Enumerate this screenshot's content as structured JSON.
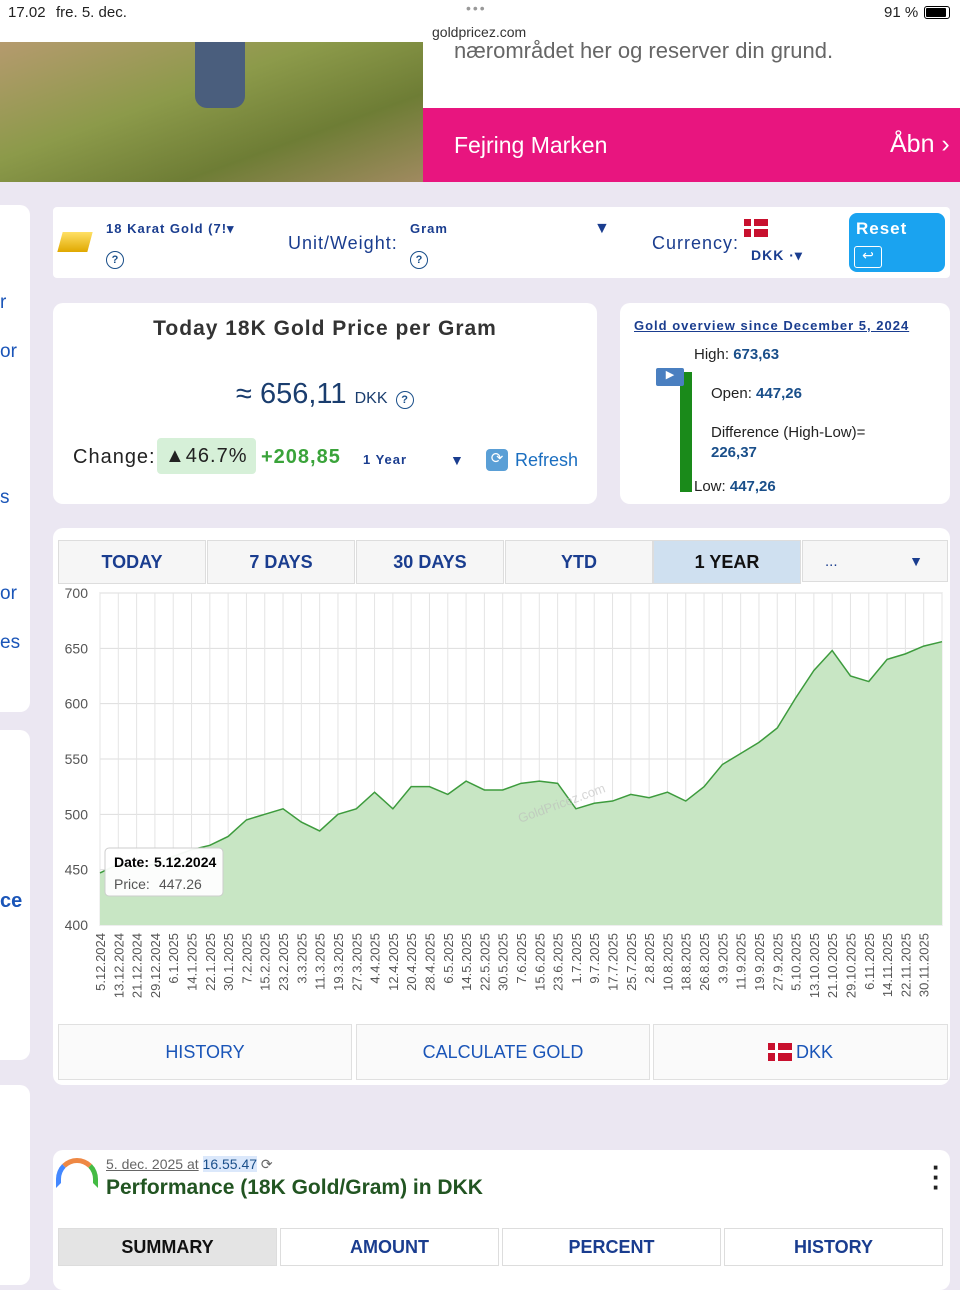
{
  "status_bar": {
    "time": "17.02",
    "date": "fre. 5. dec.",
    "url": "goldpricez.com",
    "battery": "91 %"
  },
  "ad": {
    "text": "nærområdet her og reserver din grund.",
    "title": "Fejring Marken",
    "button": "Åbn"
  },
  "sidebar_fragments": [
    "r",
    "or",
    "s",
    "or",
    "es",
    "ce"
  ],
  "selector": {
    "karat": "18 Karat Gold (7!",
    "unit_label": "Unit/Weight:",
    "unit": "Gram",
    "currency_label": "Currency:",
    "currency": "DKK ·",
    "reset": "Reset",
    "help": "?"
  },
  "price_card": {
    "title": "Today 18K Gold Price per Gram",
    "approx": "≈",
    "price": "656,11",
    "currency": "DKK",
    "change_label": "Change:",
    "change_percent": "▲46.7%",
    "change_amount": "+208,85",
    "period": "1 Year",
    "refresh": "Refresh"
  },
  "overview": {
    "title": "Gold overview since December 5, 2024",
    "high_label": "High:",
    "high": "673,63",
    "open_label": "Open:",
    "open": "447,26",
    "difference_label": "Difference (High-Low)=",
    "difference": "226,37",
    "low_label": "Low:",
    "low": "447,26"
  },
  "tabs": [
    "TODAY",
    "7 DAYS",
    "30 DAYS",
    "YTD",
    "1 YEAR",
    "..."
  ],
  "chart_data": {
    "type": "line",
    "color": "#3d9b3d",
    "fill": "#c8e6c4",
    "grid": true,
    "categories": [
      "5.12.2024",
      "13.12.2024",
      "21.12.2024",
      "29.12.2024",
      "6.1.2025",
      "14.1.2025",
      "22.1.2025",
      "30.1.2025",
      "7.2.2025",
      "15.2.2025",
      "23.2.2025",
      "3.3.2025",
      "11.3.2025",
      "19.3.2025",
      "27.3.2025",
      "4.4.2025",
      "12.4.2025",
      "20.4.2025",
      "28.4.2025",
      "6.5.2025",
      "14.5.2025",
      "22.5.2025",
      "30.5.2025",
      "7.6.2025",
      "15.6.2025",
      "23.6.2025",
      "1.7.2025",
      "9.7.2025",
      "17.7.2025",
      "25.7.2025",
      "2.8.2025",
      "10.8.2025",
      "18.8.2025",
      "26.8.2025",
      "3.9.2025",
      "11.9.2025",
      "19.9.2025",
      "27.9.2025",
      "5.10.2025",
      "13.10.2025",
      "21.10.2025",
      "29.10.2025",
      "6.11.2025",
      "14.11.2025",
      "22.11.2025",
      "30.11.2025",
      null
    ],
    "values": [
      447,
      455,
      452,
      455,
      462,
      468,
      472,
      480,
      495,
      500,
      505,
      493,
      485,
      500,
      505,
      520,
      505,
      525,
      525,
      518,
      530,
      522,
      522,
      528,
      530,
      528,
      505,
      510,
      512,
      518,
      515,
      520,
      512,
      525,
      545,
      555,
      565,
      578,
      605,
      630,
      648,
      625,
      620,
      640,
      645,
      652,
      656
    ],
    "ylim": [
      400,
      700
    ],
    "yticks": [
      400,
      450,
      500,
      550,
      600,
      650,
      700
    ],
    "tooltip": {
      "date_label": "Date:",
      "date": "5.12.2024",
      "price_label": "Price:",
      "price": "447.26"
    },
    "watermark": "GoldPricez.com"
  },
  "buttons": [
    "HISTORY",
    "CALCULATE GOLD",
    "DKK"
  ],
  "performance": {
    "date": "5. dec. 2025 at",
    "time": "16.55.47",
    "title": "Performance (18K Gold/Gram) in DKK",
    "tabs": [
      "SUMMARY",
      "AMOUNT",
      "PERCENT",
      "HISTORY"
    ]
  }
}
